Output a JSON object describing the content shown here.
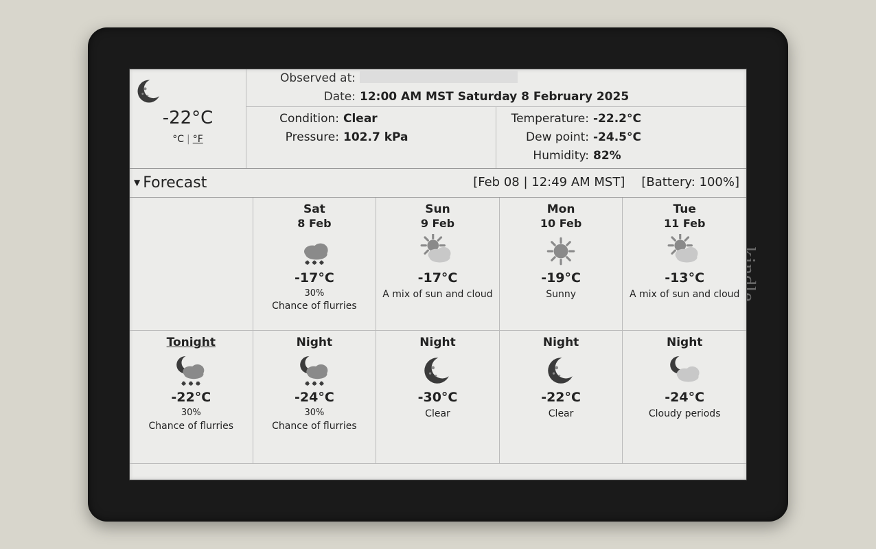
{
  "device": {
    "logo": "kindle"
  },
  "colors": {
    "screen_bg": "#ececea",
    "ink": "#222222",
    "grid_line": "#bbbbbb",
    "icon_dark": "#3b3b3b",
    "icon_mid": "#8a8a8a",
    "icon_light": "#c8c8c8"
  },
  "observation": {
    "observed_at_label": "Observed at:",
    "observed_at_value": "",
    "date_label": "Date:",
    "date_value": "12:00 AM MST Saturday 8 February 2025",
    "left_col": {
      "condition_label": "Condition:",
      "condition_value": "Clear",
      "pressure_label": "Pressure:",
      "pressure_value": "102.7 kPa"
    },
    "right_col": {
      "temperature_label": "Temperature:",
      "temperature_value": "-22.2°C",
      "dewpoint_label": "Dew point:",
      "dewpoint_value": "-24.5°C",
      "humidity_label": "Humidity:",
      "humidity_value": "82%"
    }
  },
  "current": {
    "icon": "moon",
    "temp": "-22°C",
    "unit_c": "°C",
    "unit_f": "°F",
    "active_unit": "c"
  },
  "forecast_header": {
    "title": "Forecast",
    "timestamp": "[Feb 08 | 12:49 AM MST]",
    "battery": "[Battery: 100%]"
  },
  "forecast_days": [
    null,
    {
      "dayname": "Sat",
      "daydate": "8 Feb",
      "icon": "flurries-day",
      "temp": "-17°C",
      "pct": "30%",
      "cond": "Chance of flurries"
    },
    {
      "dayname": "Sun",
      "daydate": "9 Feb",
      "icon": "mix-sun-cloud",
      "temp": "-17°C",
      "pct": "",
      "cond": "A mix of sun and cloud"
    },
    {
      "dayname": "Mon",
      "daydate": "10 Feb",
      "icon": "sunny",
      "temp": "-19°C",
      "pct": "",
      "cond": "Sunny"
    },
    {
      "dayname": "Tue",
      "daydate": "11 Feb",
      "icon": "mix-sun-cloud",
      "temp": "-13°C",
      "pct": "",
      "cond": "A mix of sun and cloud"
    }
  ],
  "forecast_nights": [
    {
      "label": "Tonight",
      "underline": true,
      "icon": "flurries-night",
      "temp": "-22°C",
      "pct": "30%",
      "cond": "Chance of flurries"
    },
    {
      "label": "Night",
      "icon": "flurries-night",
      "temp": "-24°C",
      "pct": "30%",
      "cond": "Chance of flurries"
    },
    {
      "label": "Night",
      "icon": "moon",
      "temp": "-30°C",
      "pct": "",
      "cond": "Clear"
    },
    {
      "label": "Night",
      "icon": "moon",
      "temp": "-22°C",
      "pct": "",
      "cond": "Clear"
    },
    {
      "label": "Night",
      "icon": "cloudy-night",
      "temp": "-24°C",
      "pct": "",
      "cond": "Cloudy periods"
    }
  ]
}
